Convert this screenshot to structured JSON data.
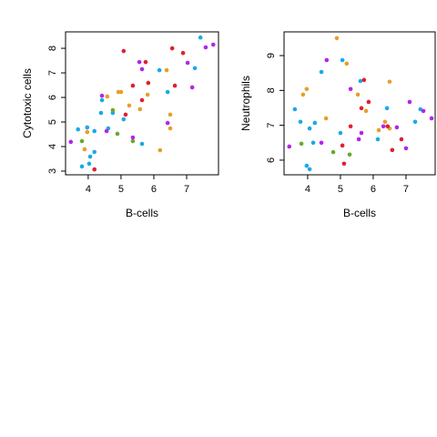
{
  "chart_data": [
    {
      "type": "scatter",
      "xlabel": "B-cells",
      "ylabel": "Cytotoxic cells",
      "xlim": [
        3.31,
        7.97
      ],
      "ylim": [
        2.85,
        8.67
      ],
      "xticks": [
        4,
        5,
        6,
        7
      ],
      "yticks": [
        3,
        4,
        5,
        6,
        7,
        8
      ],
      "series": [
        {
          "color": "#1ca9e6",
          "x": [
            7.42,
            7.25,
            6.17,
            6.42,
            5.64,
            5.08,
            4.75,
            4.39,
            4.19,
            3.97,
            3.69,
            4.06,
            4.19,
            4.03,
            3.81,
            4.42,
            4.61
          ],
          "y": [
            8.44,
            7.19,
            7.11,
            6.22,
            4.11,
            5.11,
            5.37,
            5.37,
            4.63,
            4.78,
            4.7,
            3.59,
            3.78,
            3.3,
            3.19,
            5.89,
            4.74
          ]
        },
        {
          "color": "#e69f2a",
          "x": [
            4.58,
            4.92,
            5.0,
            5.25,
            5.58,
            5.81,
            6.39,
            6.5,
            6.5,
            6.19,
            3.89,
            3.97
          ],
          "y": [
            6.04,
            6.22,
            6.22,
            5.67,
            5.52,
            6.11,
            7.11,
            5.3,
            4.74,
            3.85,
            3.89,
            4.59
          ]
        },
        {
          "color": "#6aa82c",
          "x": [
            3.81,
            4.75,
            4.89,
            5.36
          ],
          "y": [
            4.22,
            5.48,
            4.52,
            4.22
          ]
        },
        {
          "color": "#e0202e",
          "x": [
            5.08,
            5.14,
            5.36,
            5.64,
            5.75,
            5.83,
            6.56,
            6.64,
            6.89,
            4.19
          ],
          "y": [
            7.89,
            5.3,
            6.48,
            5.89,
            7.44,
            6.59,
            8.0,
            6.48,
            7.81,
            3.07
          ]
        },
        {
          "color": "#b325e8",
          "x": [
            3.47,
            4.42,
            4.56,
            5.36,
            5.56,
            5.64,
            6.42,
            7.03,
            7.17,
            7.58,
            7.81
          ],
          "y": [
            4.19,
            6.07,
            4.63,
            4.37,
            7.44,
            7.15,
            4.96,
            7.41,
            6.41,
            8.04,
            8.15
          ]
        }
      ]
    },
    {
      "type": "scatter",
      "xlabel": "B-cells",
      "ylabel": "Neutrophils",
      "xlim": [
        3.28,
        7.89
      ],
      "ylim": [
        5.58,
        9.68
      ],
      "xticks": [
        4,
        5,
        6,
        7
      ],
      "yticks": [
        6,
        7,
        8,
        9
      ],
      "series": [
        {
          "color": "#1ca9e6",
          "x": [
            3.61,
            3.78,
            4.06,
            4.22,
            4.17,
            3.97,
            4.06,
            4.42,
            5.06,
            5.0,
            5.61,
            6.14,
            6.42,
            7.28,
            7.44
          ],
          "y": [
            7.46,
            7.1,
            6.91,
            7.07,
            6.5,
            5.84,
            5.74,
            8.53,
            8.87,
            6.78,
            8.27,
            6.6,
            7.49,
            7.1,
            7.46
          ]
        },
        {
          "color": "#e69f2a",
          "x": [
            3.86,
            3.97,
            4.56,
            4.89,
            5.19,
            5.53,
            5.78,
            6.17,
            6.36,
            6.5,
            6.5
          ],
          "y": [
            7.88,
            8.04,
            7.2,
            9.5,
            8.77,
            7.88,
            7.41,
            6.86,
            7.1,
            8.25,
            6.91
          ]
        },
        {
          "color": "#6aa82c",
          "x": [
            3.81,
            4.78,
            5.28
          ],
          "y": [
            6.47,
            6.23,
            6.16
          ]
        },
        {
          "color": "#e0202e",
          "x": [
            5.31,
            5.06,
            5.11,
            5.64,
            5.72,
            5.86,
            6.58,
            6.86,
            6.44
          ],
          "y": [
            6.97,
            6.42,
            5.9,
            7.49,
            8.3,
            7.67,
            6.29,
            6.6,
            6.97
          ]
        },
        {
          "color": "#b325e8",
          "x": [
            3.44,
            4.42,
            4.58,
            5.31,
            5.56,
            5.64,
            6.31,
            6.72,
            7.0,
            7.11,
            7.53,
            7.78
          ],
          "y": [
            6.39,
            6.5,
            8.87,
            8.04,
            6.6,
            6.78,
            6.97,
            6.94,
            6.34,
            7.67,
            7.41,
            7.2
          ]
        }
      ]
    }
  ]
}
